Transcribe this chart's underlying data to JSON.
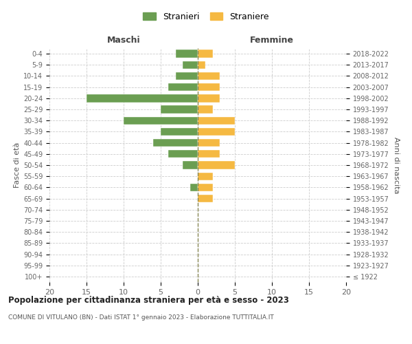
{
  "age_groups": [
    "100+",
    "95-99",
    "90-94",
    "85-89",
    "80-84",
    "75-79",
    "70-74",
    "65-69",
    "60-64",
    "55-59",
    "50-54",
    "45-49",
    "40-44",
    "35-39",
    "30-34",
    "25-29",
    "20-24",
    "15-19",
    "10-14",
    "5-9",
    "0-4"
  ],
  "birth_years": [
    "≤ 1922",
    "1923-1927",
    "1928-1932",
    "1933-1937",
    "1938-1942",
    "1943-1947",
    "1948-1952",
    "1953-1957",
    "1958-1962",
    "1963-1967",
    "1968-1972",
    "1973-1977",
    "1978-1982",
    "1983-1987",
    "1988-1992",
    "1993-1997",
    "1998-2002",
    "2003-2007",
    "2008-2012",
    "2013-2017",
    "2018-2022"
  ],
  "maschi": [
    0,
    0,
    0,
    0,
    0,
    0,
    0,
    0,
    1,
    0,
    2,
    4,
    6,
    5,
    10,
    5,
    15,
    4,
    3,
    2,
    3
  ],
  "femmine": [
    0,
    0,
    0,
    0,
    0,
    0,
    0,
    2,
    2,
    2,
    5,
    3,
    3,
    5,
    5,
    2,
    3,
    3,
    3,
    1,
    2
  ],
  "color_maschi": "#6b9e52",
  "color_femmine": "#f5b942",
  "title": "Popolazione per cittadinanza straniera per età e sesso - 2023",
  "subtitle": "COMUNE DI VITULANO (BN) - Dati ISTAT 1° gennaio 2023 - Elaborazione TUTTITALIA.IT",
  "ylabel_left": "Fasce di età",
  "ylabel_right": "Anni di nascita",
  "xlabel_maschi": "Maschi",
  "xlabel_femmine": "Femmine",
  "legend_maschi": "Stranieri",
  "legend_femmine": "Straniere",
  "xlim": 20,
  "background_color": "#ffffff",
  "grid_color": "#cccccc"
}
